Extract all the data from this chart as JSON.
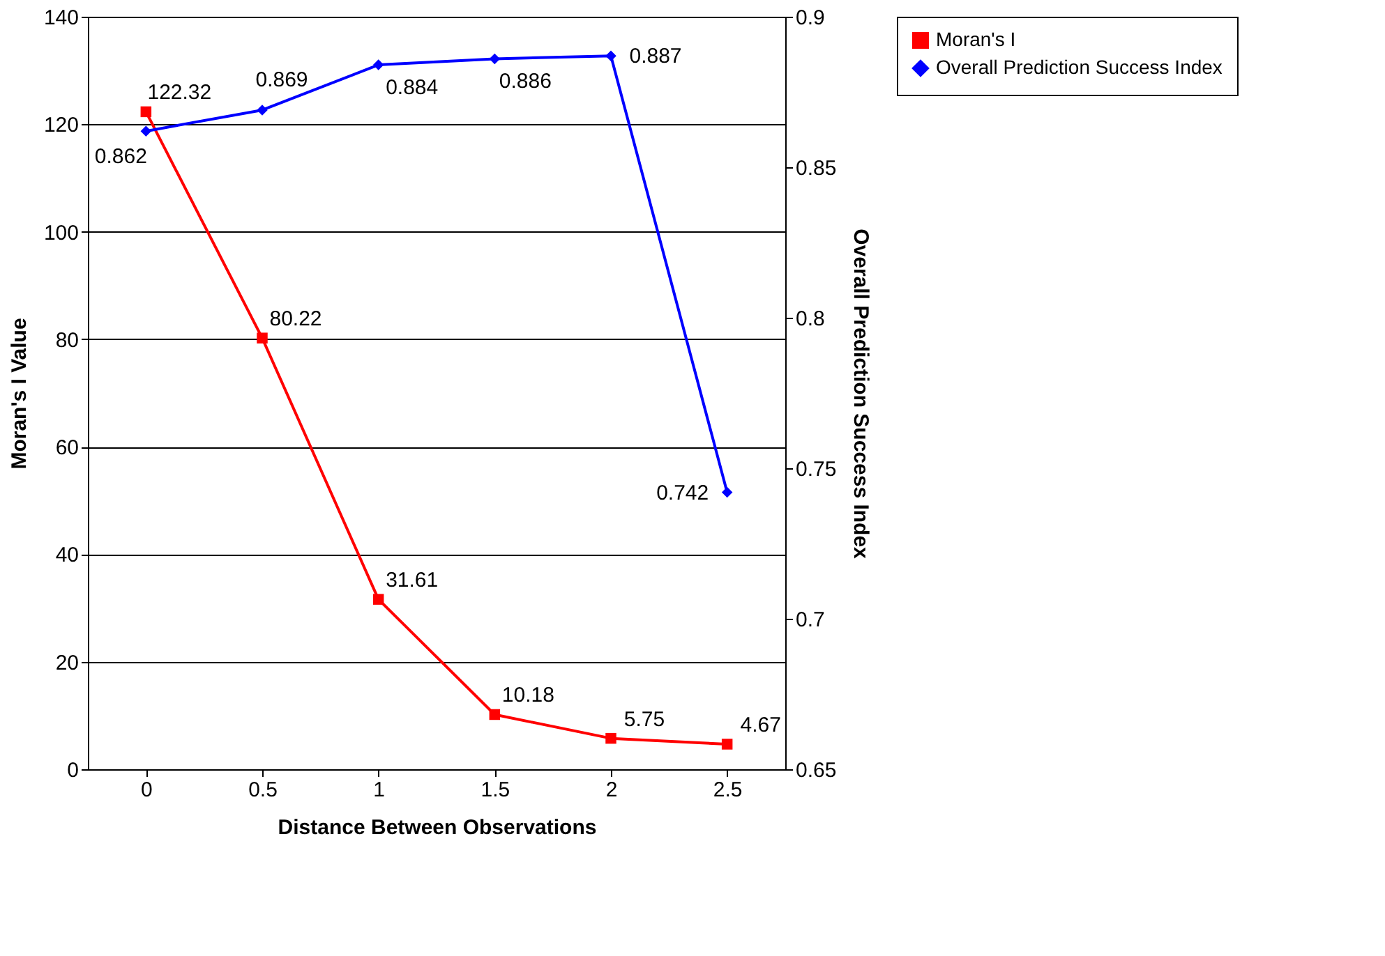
{
  "chart_data": {
    "type": "line",
    "xlabel": "Distance Between Observations",
    "ylabel": "Moran's I Value",
    "y2label": "Overall Prediction Success Index",
    "categories": [
      "0",
      "0.5",
      "1",
      "1.5",
      "2",
      "2.5"
    ],
    "series": [
      {
        "name": "Moran's I",
        "color": "#ff0000",
        "marker": "square",
        "values": [
          122.32,
          80.22,
          31.61,
          10.18,
          5.75,
          4.67
        ]
      },
      {
        "name": "Overall Prediction Success Index",
        "color": "#0000ff",
        "marker": "diamond",
        "axis": "y2",
        "values": [
          0.862,
          0.869,
          0.884,
          0.886,
          0.887,
          0.742
        ]
      }
    ],
    "ylim": [
      0,
      140
    ],
    "yticks": [
      0,
      20,
      40,
      60,
      80,
      100,
      120,
      140
    ],
    "y2lim": [
      0.65,
      0.9
    ],
    "y2ticks": [
      0.65,
      0.7,
      0.75,
      0.8,
      0.85,
      0.9
    ],
    "grid": "y",
    "legend": "right",
    "data_labels": true,
    "line_style": "solid"
  }
}
